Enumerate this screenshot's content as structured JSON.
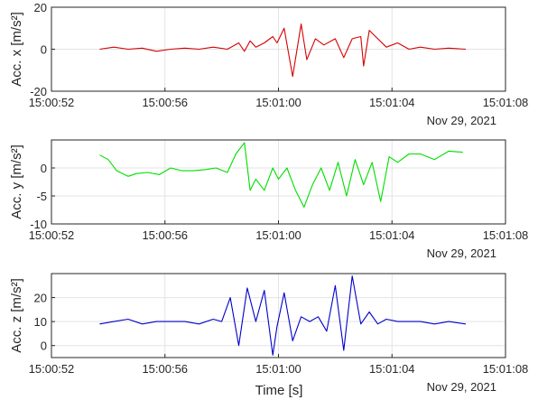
{
  "figure_xlabel": "Time [s]",
  "chart_data": [
    {
      "type": "line",
      "ylabel": "Acc. x [m/s²]",
      "ylim": [
        -20,
        20
      ],
      "yticks": [
        -20,
        0,
        20
      ],
      "xlim_seconds": [
        52,
        68
      ],
      "xticks": [
        "15:00:52",
        "15:00:56",
        "15:01:00",
        "15:01:04",
        "15:01:08"
      ],
      "date_label": "Nov 29, 2021",
      "grid": true,
      "series": [
        {
          "color": "#d40000",
          "x": [
            "15:00:53.7",
            "15:00:54.2",
            "15:00:54.7",
            "15:00:55.2",
            "15:00:55.7",
            "15:00:56.2",
            "15:00:56.7",
            "15:00:57.2",
            "15:00:57.7",
            "15:00:58.2",
            "15:00:58.6",
            "15:00:58.8",
            "15:00:59.0",
            "15:00:59.2",
            "15:00:59.5",
            "15:00:59.8",
            "15:00:59.95",
            "15:01:00.2",
            "15:01:00.5",
            "15:01:00.8",
            "15:01:01.0",
            "15:01:01.3",
            "15:01:01.6",
            "15:01:02.0",
            "15:01:02.3",
            "15:01:02.6",
            "15:01:02.9",
            "15:01:03.0",
            "15:01:03.2",
            "15:01:03.5",
            "15:01:03.8",
            "15:01:04.2",
            "15:01:04.6",
            "15:01:05.0",
            "15:01:05.5",
            "15:01:06.0",
            "15:01:06.6"
          ],
          "y": [
            0,
            1,
            0,
            0.5,
            -1,
            0,
            0.5,
            0,
            1,
            0,
            3,
            -1,
            4,
            1,
            3,
            6,
            3,
            10,
            -13,
            12,
            -5,
            5,
            2,
            5,
            -4,
            5,
            6,
            -8,
            9,
            5,
            1,
            3,
            0,
            1,
            0,
            0.5,
            0
          ]
        }
      ]
    },
    {
      "type": "line",
      "ylabel": "Acc. y [m/s²]",
      "ylim": [
        -10,
        5
      ],
      "yticks": [
        -10,
        -5,
        0
      ],
      "xlim_seconds": [
        52,
        68
      ],
      "xticks": [
        "15:00:52",
        "15:00:56",
        "15:01:00",
        "15:01:04",
        "15:01:08"
      ],
      "date_label": "Nov 29, 2021",
      "grid": true,
      "series": [
        {
          "color": "#00dd00",
          "x": [
            "15:00:53.7",
            "15:00:54.0",
            "15:00:54.3",
            "15:00:54.7",
            "15:00:55.0",
            "15:00:55.4",
            "15:00:55.8",
            "15:00:56.2",
            "15:00:56.6",
            "15:00:57.0",
            "15:00:57.4",
            "15:00:57.8",
            "15:00:58.2",
            "15:00:58.5",
            "15:00:58.8",
            "15:00:59.0",
            "15:00:59.2",
            "15:00:59.5",
            "15:00:59.8",
            "15:01:00.0",
            "15:01:00.3",
            "15:01:00.6",
            "15:01:00.9",
            "15:01:01.2",
            "15:01:01.5",
            "15:01:01.8",
            "15:01:02.1",
            "15:01:02.4",
            "15:01:02.7",
            "15:01:03.0",
            "15:01:03.3",
            "15:01:03.6",
            "15:01:03.9",
            "15:01:04.2",
            "15:01:04.6",
            "15:01:05.0",
            "15:01:05.5",
            "15:01:06.0",
            "15:01:06.5"
          ],
          "y": [
            2.3,
            1.5,
            -0.5,
            -1.5,
            -1,
            -0.8,
            -1.2,
            0,
            -0.5,
            -0.5,
            -0.3,
            0,
            -0.8,
            2.5,
            4.5,
            -4,
            -2,
            -4,
            0,
            -2,
            0,
            -4,
            -7,
            -3,
            0,
            -4,
            1,
            -5,
            1.5,
            -3,
            1,
            -6,
            2,
            1,
            2.5,
            2.5,
            1.5,
            3,
            2.8
          ]
        }
      ]
    },
    {
      "type": "line",
      "ylabel": "Acc. z [m/s²]",
      "ylim": [
        -5,
        30
      ],
      "yticks": [
        0,
        10,
        20
      ],
      "xlim_seconds": [
        52,
        68
      ],
      "xticks": [
        "15:00:52",
        "15:00:56",
        "15:01:00",
        "15:01:04",
        "15:01:08"
      ],
      "date_label": "Nov 29, 2021",
      "grid": true,
      "series": [
        {
          "color": "#0000cc",
          "x": [
            "15:00:53.7",
            "15:00:54.2",
            "15:00:54.7",
            "15:00:55.2",
            "15:00:55.7",
            "15:00:56.2",
            "15:00:56.7",
            "15:00:57.2",
            "15:00:57.7",
            "15:00:58.0",
            "15:00:58.3",
            "15:00:58.6",
            "15:00:58.9",
            "15:00:59.2",
            "15:00:59.5",
            "15:00:59.8",
            "15:00:59.95",
            "15:01:00.2",
            "15:01:00.5",
            "15:01:00.8",
            "15:01:01.1",
            "15:01:01.4",
            "15:01:01.7",
            "15:01:02.0",
            "15:01:02.3",
            "15:01:02.6",
            "15:01:02.9",
            "15:01:03.2",
            "15:01:03.5",
            "15:01:03.8",
            "15:01:04.2",
            "15:01:04.6",
            "15:01:05.0",
            "15:01:05.5",
            "15:01:06.0",
            "15:01:06.6"
          ],
          "y": [
            9,
            10,
            11,
            9,
            10,
            10,
            10,
            9,
            11,
            10,
            20,
            0,
            24,
            10,
            23,
            -4,
            8,
            22,
            2,
            12,
            10,
            12,
            6,
            25,
            -2,
            29,
            9,
            14,
            9,
            11,
            10,
            10,
            10,
            9,
            10,
            9
          ]
        }
      ]
    }
  ]
}
